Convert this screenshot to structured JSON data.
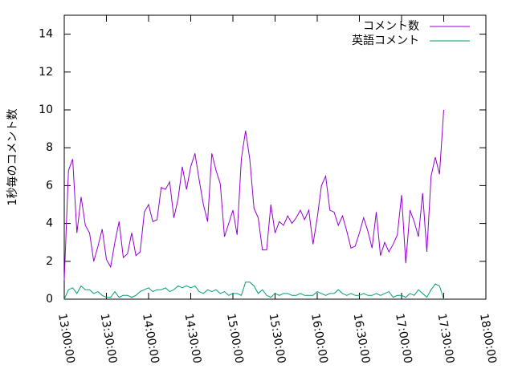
{
  "chart_data": {
    "type": "line",
    "ylabel": "1秒毎のコメント数",
    "x": [
      "13:00:00",
      "13:03:00",
      "13:06:00",
      "13:09:00",
      "13:12:00",
      "13:15:00",
      "13:18:00",
      "13:21:00",
      "13:24:00",
      "13:27:00",
      "13:30:00",
      "13:33:00",
      "13:36:00",
      "13:39:00",
      "13:42:00",
      "13:45:00",
      "13:48:00",
      "13:51:00",
      "13:54:00",
      "13:57:00",
      "14:00:00",
      "14:03:00",
      "14:06:00",
      "14:09:00",
      "14:12:00",
      "14:15:00",
      "14:18:00",
      "14:21:00",
      "14:24:00",
      "14:27:00",
      "14:30:00",
      "14:33:00",
      "14:36:00",
      "14:39:00",
      "14:42:00",
      "14:45:00",
      "14:48:00",
      "14:51:00",
      "14:54:00",
      "14:57:00",
      "15:00:00",
      "15:03:00",
      "15:06:00",
      "15:09:00",
      "15:12:00",
      "15:15:00",
      "15:18:00",
      "15:21:00",
      "15:24:00",
      "15:27:00",
      "15:30:00",
      "15:33:00",
      "15:36:00",
      "15:39:00",
      "15:42:00",
      "15:45:00",
      "15:48:00",
      "15:51:00",
      "15:54:00",
      "15:57:00",
      "16:00:00",
      "16:03:00",
      "16:06:00",
      "16:09:00",
      "16:12:00",
      "16:15:00",
      "16:18:00",
      "16:21:00",
      "16:24:00",
      "16:27:00",
      "16:30:00",
      "16:33:00",
      "16:36:00",
      "16:39:00",
      "16:42:00",
      "16:45:00",
      "16:48:00",
      "16:51:00",
      "16:54:00",
      "16:57:00",
      "17:00:00",
      "17:03:00",
      "17:06:00",
      "17:09:00",
      "17:12:00",
      "17:15:00",
      "17:18:00",
      "17:21:00",
      "17:24:00",
      "17:27:00",
      "17:30:00"
    ],
    "series": [
      {
        "name": "コメント数",
        "color": "#9400d3",
        "values": [
          1.0,
          6.8,
          7.4,
          3.5,
          5.4,
          3.9,
          3.5,
          2.0,
          2.8,
          3.7,
          2.1,
          1.7,
          3.0,
          4.1,
          2.2,
          2.4,
          3.5,
          2.3,
          2.5,
          4.6,
          5.0,
          4.1,
          4.2,
          5.9,
          5.8,
          6.2,
          4.3,
          5.3,
          7.0,
          5.8,
          7.0,
          7.7,
          6.3,
          5.0,
          4.1,
          7.7,
          6.8,
          6.1,
          3.3,
          4.0,
          4.7,
          3.4,
          7.4,
          8.9,
          7.4,
          4.8,
          4.3,
          2.6,
          2.6,
          5.0,
          3.5,
          4.1,
          3.9,
          4.4,
          4.0,
          4.3,
          4.7,
          4.2,
          4.7,
          2.9,
          4.3,
          6.0,
          6.5,
          4.7,
          4.6,
          3.9,
          4.4,
          3.6,
          2.7,
          2.8,
          3.5,
          4.3,
          3.6,
          2.7,
          4.6,
          2.3,
          3.0,
          2.5,
          2.9,
          3.4,
          5.5,
          1.9,
          4.7,
          4.1,
          3.3,
          5.6,
          2.5,
          6.5,
          7.5,
          6.6,
          10.0
        ]
      },
      {
        "name": "英語コメント",
        "color": "#009e73",
        "values": [
          0.0,
          0.5,
          0.6,
          0.3,
          0.7,
          0.5,
          0.5,
          0.3,
          0.4,
          0.2,
          0.1,
          0.1,
          0.4,
          0.1,
          0.2,
          0.2,
          0.1,
          0.2,
          0.4,
          0.5,
          0.6,
          0.4,
          0.5,
          0.5,
          0.6,
          0.4,
          0.5,
          0.7,
          0.6,
          0.7,
          0.6,
          0.7,
          0.4,
          0.3,
          0.5,
          0.4,
          0.5,
          0.3,
          0.4,
          0.2,
          0.3,
          0.3,
          0.2,
          0.9,
          0.9,
          0.7,
          0.3,
          0.5,
          0.2,
          0.1,
          0.3,
          0.2,
          0.3,
          0.3,
          0.2,
          0.2,
          0.3,
          0.2,
          0.2,
          0.2,
          0.4,
          0.3,
          0.2,
          0.3,
          0.3,
          0.5,
          0.3,
          0.2,
          0.3,
          0.2,
          0.2,
          0.3,
          0.2,
          0.2,
          0.3,
          0.2,
          0.3,
          0.4,
          0.1,
          0.2,
          0.2,
          0.1,
          0.3,
          0.2,
          0.5,
          0.3,
          0.1,
          0.5,
          0.8,
          0.7,
          0.0
        ]
      }
    ],
    "xlim": [
      "13:00:00",
      "18:00:00"
    ],
    "xticks": [
      "13:00:00",
      "13:30:00",
      "14:00:00",
      "14:30:00",
      "15:00:00",
      "15:30:00",
      "16:00:00",
      "16:30:00",
      "17:00:00",
      "17:30:00",
      "18:00:00"
    ],
    "ylim": [
      0,
      15
    ],
    "yticks": [
      0,
      2,
      4,
      6,
      8,
      10,
      12,
      14
    ],
    "grid": false,
    "legend": "top-right"
  }
}
